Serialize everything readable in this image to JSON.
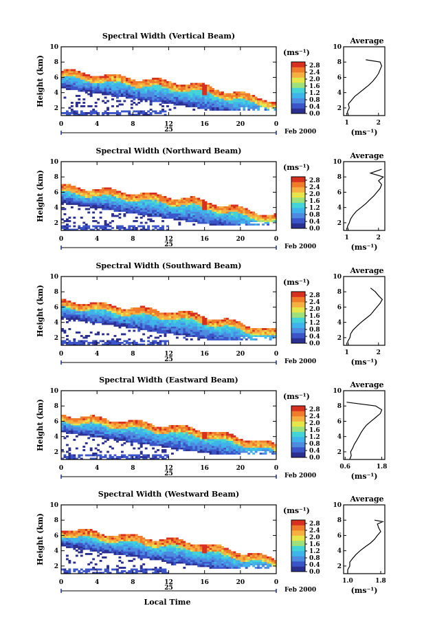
{
  "figure": {
    "colorbar_unit": "(ms⁻¹)",
    "colorbar_ticks": [
      "0.0",
      "0.4",
      "0.8",
      "1.2",
      "1.6",
      "2.0",
      "2.4",
      "2.8"
    ],
    "date_label": "Feb 2000",
    "day_label": "25",
    "x_ticks": [
      "0",
      "4",
      "8",
      "12",
      "16",
      "20",
      "0"
    ],
    "y_ticks": [
      "2",
      "4",
      "6",
      "8",
      "10"
    ],
    "ylabel": "Height (km)",
    "xlabel": "Local Time",
    "avg_title": "Average",
    "avg_xlabel": "(ms⁻¹)",
    "colors": [
      "#2b2f8f",
      "#3b54c8",
      "#4d8be0",
      "#3fb4ea",
      "#44d3d6",
      "#9ee07a",
      "#e6e64a",
      "#f5b041",
      "#f07b2b",
      "#d7301f"
    ]
  },
  "chart_data": [
    {
      "type": "heatmap",
      "title": "Spectral Width (Vertical Beam)",
      "x_range_hours": [
        0,
        24
      ],
      "y_range_km": [
        1,
        10
      ],
      "value_range_ms": [
        0.0,
        3.0
      ],
      "avg_profile": {
        "x_ticks": [
          "1",
          "2"
        ],
        "xlim": [
          0.9,
          2.2
        ],
        "height_km": [
          1.0,
          1.5,
          2.0,
          2.5,
          3.0,
          3.5,
          4.0,
          4.5,
          5.0,
          5.5,
          6.0,
          6.5,
          7.0,
          7.5,
          8.0,
          8.3
        ],
        "width_ms": [
          1.05,
          1.02,
          1.08,
          1.05,
          1.15,
          1.25,
          1.4,
          1.55,
          1.7,
          1.82,
          1.92,
          2.0,
          2.05,
          2.1,
          2.05,
          1.6
        ]
      }
    },
    {
      "type": "heatmap",
      "title": "Spectral Width (Northward Beam)",
      "x_range_hours": [
        0,
        24
      ],
      "y_range_km": [
        1,
        10
      ],
      "value_range_ms": [
        0.0,
        3.0
      ],
      "avg_profile": {
        "x_ticks": [
          "1",
          "2"
        ],
        "xlim": [
          0.9,
          2.2
        ],
        "height_km": [
          1.0,
          1.5,
          2.0,
          2.5,
          3.0,
          3.5,
          4.0,
          4.5,
          5.0,
          5.5,
          6.0,
          6.5,
          7.0,
          7.5,
          8.0,
          8.5,
          9.0
        ],
        "width_ms": [
          1.05,
          1.02,
          1.08,
          1.12,
          1.2,
          1.3,
          1.45,
          1.6,
          1.72,
          1.85,
          1.95,
          2.05,
          2.1,
          2.0,
          2.15,
          1.75,
          2.1
        ]
      }
    },
    {
      "type": "heatmap",
      "title": "Spectral Width (Southward Beam)",
      "x_range_hours": [
        0,
        24
      ],
      "y_range_km": [
        1,
        10
      ],
      "value_range_ms": [
        0.0,
        3.0
      ],
      "avg_profile": {
        "x_ticks": [
          "1",
          "2"
        ],
        "xlim": [
          0.9,
          2.2
        ],
        "height_km": [
          1.0,
          1.5,
          2.0,
          2.5,
          3.0,
          3.5,
          4.0,
          4.5,
          5.0,
          5.5,
          6.0,
          6.5,
          7.0,
          7.5,
          8.0,
          8.5
        ],
        "width_ms": [
          1.05,
          1.03,
          1.1,
          1.12,
          1.2,
          1.32,
          1.45,
          1.6,
          1.75,
          1.85,
          1.95,
          2.05,
          2.12,
          2.0,
          1.9,
          1.75
        ]
      }
    },
    {
      "type": "heatmap",
      "title": "Spectral Width (Eastward Beam)",
      "x_range_hours": [
        0,
        24
      ],
      "y_range_km": [
        1,
        10
      ],
      "value_range_ms": [
        0.0,
        3.0
      ],
      "avg_profile": {
        "x_ticks": [
          "0.6",
          "1.8"
        ],
        "xlim": [
          0.55,
          1.9
        ],
        "height_km": [
          1.0,
          1.5,
          2.0,
          2.5,
          3.0,
          3.5,
          4.0,
          4.5,
          5.0,
          5.5,
          6.0,
          6.5,
          7.0,
          7.5,
          8.0,
          8.5
        ],
        "width_ms": [
          0.75,
          0.8,
          0.78,
          0.85,
          0.9,
          0.98,
          1.05,
          1.12,
          1.2,
          1.3,
          1.45,
          1.6,
          1.75,
          1.8,
          1.6,
          0.65
        ]
      }
    },
    {
      "type": "heatmap",
      "title": "Spectral Width (Westward Beam)",
      "x_range_hours": [
        0,
        24
      ],
      "y_range_km": [
        1,
        10
      ],
      "value_range_ms": [
        0.0,
        3.0
      ],
      "avg_profile": {
        "x_ticks": [
          "1.0",
          "1.8"
        ],
        "xlim": [
          0.9,
          1.9
        ],
        "height_km": [
          1.0,
          1.5,
          2.0,
          2.5,
          3.0,
          3.5,
          4.0,
          4.5,
          5.0,
          5.5,
          6.0,
          6.5,
          7.0,
          7.5,
          7.8,
          8.0
        ],
        "width_ms": [
          1.0,
          1.0,
          1.05,
          1.05,
          1.12,
          1.2,
          1.3,
          1.42,
          1.55,
          1.65,
          1.72,
          1.8,
          1.75,
          1.72,
          1.85,
          1.65
        ]
      }
    }
  ]
}
